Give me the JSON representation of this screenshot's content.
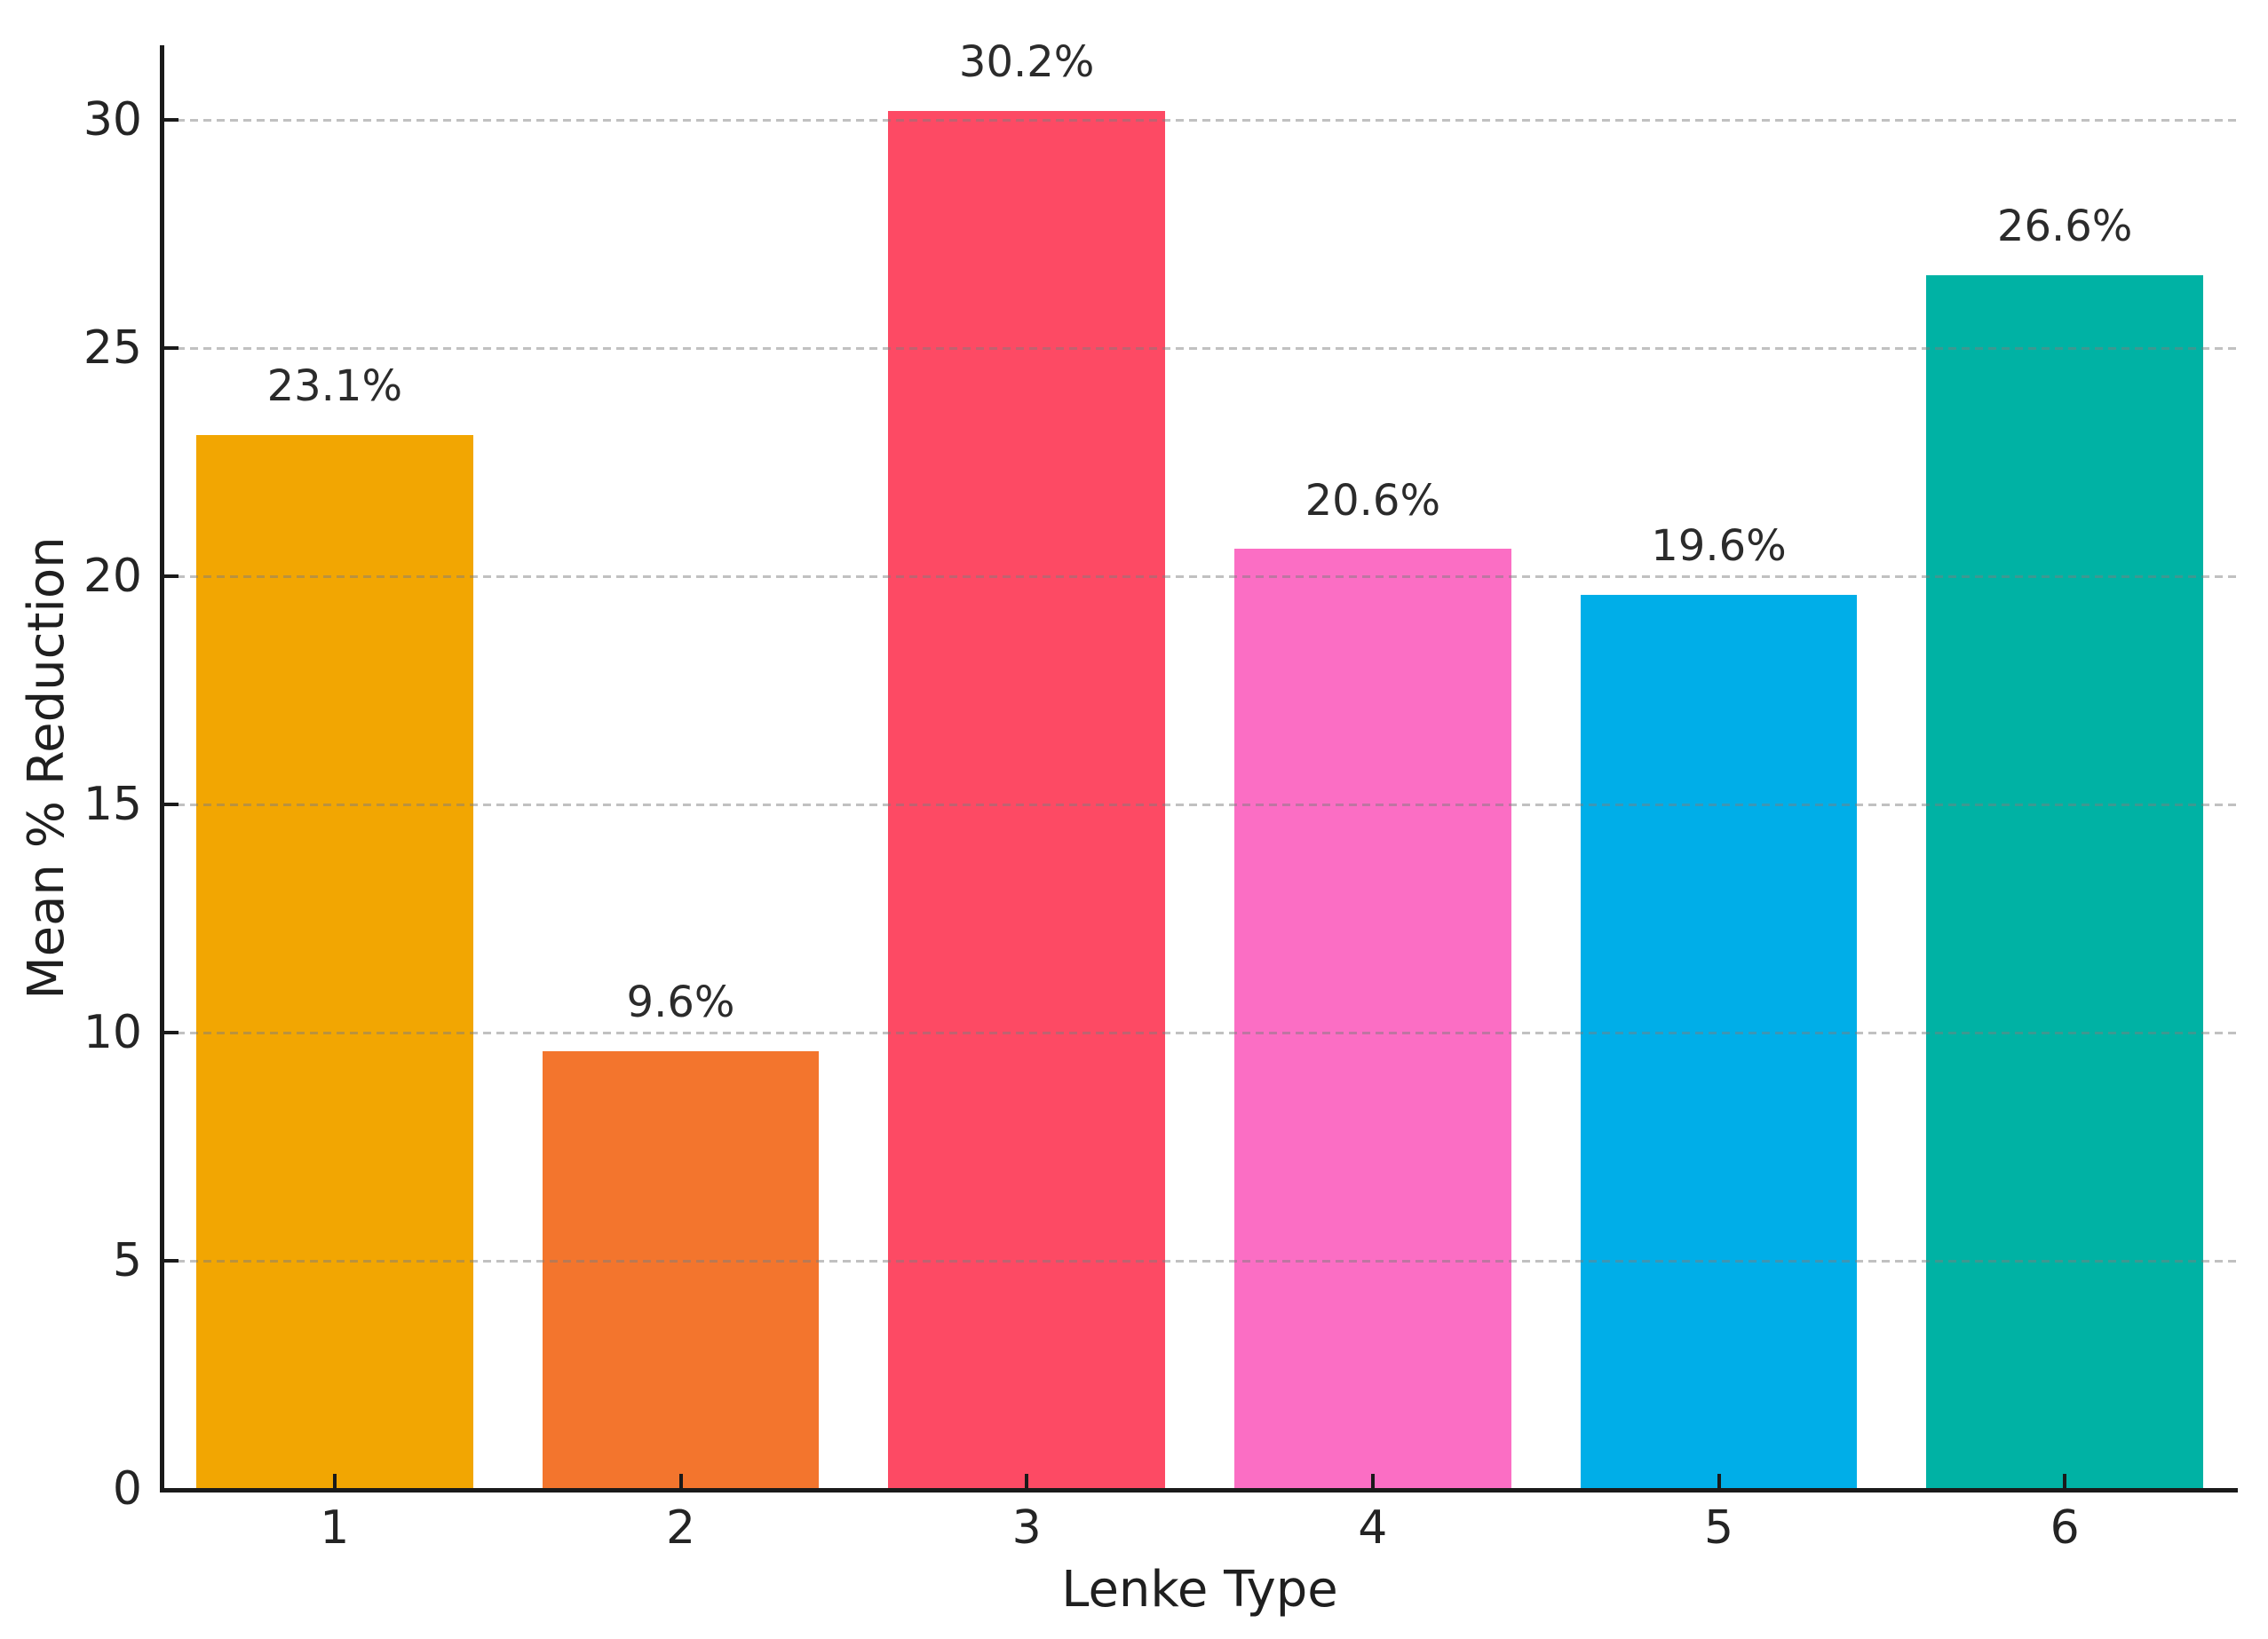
{
  "chart_data": {
    "type": "bar",
    "title": "",
    "xlabel": "Lenke Type",
    "ylabel": "Mean % Reduction",
    "categories": [
      "1",
      "2",
      "3",
      "4",
      "5",
      "6"
    ],
    "values": [
      23.1,
      9.6,
      30.2,
      20.6,
      19.6,
      26.6
    ],
    "value_labels": [
      "23.1%",
      "9.6%",
      "30.2%",
      "20.6%",
      "19.6%",
      "26.6%"
    ],
    "bar_colors": [
      "#F2A602",
      "#F3752D",
      "#FD4A64",
      "#FB6EC4",
      "#00AEE8",
      "#00B2A4"
    ],
    "yticks": [
      0,
      5,
      10,
      15,
      20,
      25,
      30
    ],
    "ylim": [
      0,
      31.6
    ],
    "bar_width_fraction": 0.8,
    "grid": "horizontal dashed, drawn over bars",
    "legend": "none",
    "colors": {
      "gridline": "#cccccc",
      "spine": "#1a1a1a",
      "text": "#1f1f1f",
      "background": "#ffffff"
    }
  }
}
